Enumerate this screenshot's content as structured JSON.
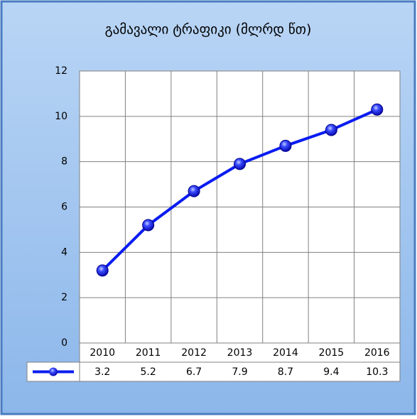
{
  "chart_data": {
    "type": "line",
    "title": "გამავალი ტრაფიკი (მლრდ წთ)",
    "categories": [
      "2010",
      "2011",
      "2012",
      "2013",
      "2014",
      "2015",
      "2016"
    ],
    "values": [
      3.2,
      5.2,
      6.7,
      7.9,
      8.7,
      9.4,
      10.3
    ],
    "color": "#0a1cf0",
    "ylim": [
      0,
      12
    ],
    "yticks": [
      0,
      2,
      4,
      6,
      8,
      10,
      12
    ],
    "grid": true
  }
}
